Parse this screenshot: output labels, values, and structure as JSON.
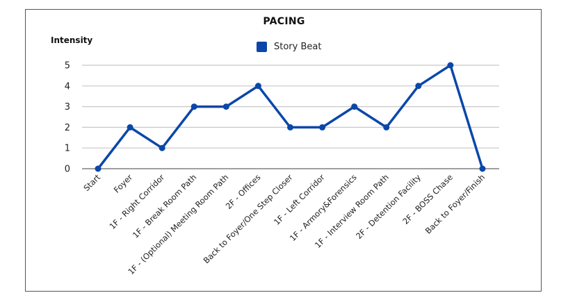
{
  "chart_data": {
    "type": "line",
    "title": "PACING",
    "xlabel": "",
    "ylabel": "Intensity",
    "ylim": [
      0,
      5
    ],
    "yticks": [
      0,
      1,
      2,
      3,
      4,
      5
    ],
    "grid": true,
    "legend_position": "top",
    "categories": [
      "Start",
      "Foyer",
      "1F - Right Corridor",
      "1F - Break Room Path",
      "1F - (Optional) Meeting Room Path",
      "2F - Offices",
      "Back to Foyer/One Step Closer",
      "1F - Left Corridor",
      "1F - Armory&Forensics",
      "1F - Interview Room Path",
      "2F - Detention Facility",
      "2F - BOSS Chase",
      "Back to Foyer/Finish"
    ],
    "series": [
      {
        "name": "Story Beat",
        "color": "#0b47a8",
        "values": [
          0,
          2,
          1,
          3,
          3,
          4,
          2,
          2,
          3,
          2,
          4,
          5,
          0
        ]
      }
    ]
  }
}
